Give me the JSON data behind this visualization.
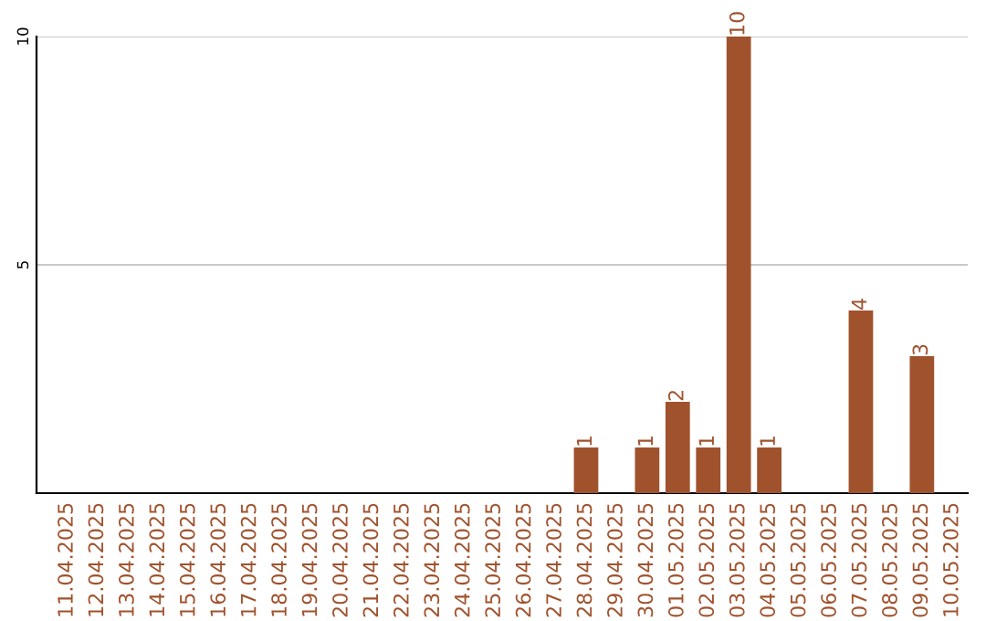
{
  "chart_data": {
    "type": "bar",
    "categories": [
      "11.04.2025",
      "12.04.2025",
      "13.04.2025",
      "14.04.2025",
      "15.04.2025",
      "16.04.2025",
      "17.04.2025",
      "18.04.2025",
      "19.04.2025",
      "20.04.2025",
      "21.04.2025",
      "22.04.2025",
      "23.04.2025",
      "24.04.2025",
      "25.04.2025",
      "26.04.2025",
      "27.04.2025",
      "28.04.2025",
      "29.04.2025",
      "30.04.2025",
      "01.05.2025",
      "02.05.2025",
      "03.05.2025",
      "04.05.2025",
      "05.05.2025",
      "06.05.2025",
      "07.05.2025",
      "08.05.2025",
      "09.05.2025",
      "10.05.2025"
    ],
    "values": [
      0,
      0,
      0,
      0,
      0,
      0,
      0,
      0,
      0,
      0,
      0,
      0,
      0,
      0,
      0,
      0,
      0,
      1,
      0,
      1,
      2,
      1,
      10,
      1,
      0,
      0,
      4,
      0,
      3,
      0
    ],
    "value_labels": [
      null,
      null,
      null,
      null,
      null,
      null,
      null,
      null,
      null,
      null,
      null,
      null,
      null,
      null,
      null,
      null,
      null,
      "1",
      null,
      "1",
      "2",
      "1",
      "10",
      "1",
      null,
      null,
      "4",
      null,
      "3",
      null
    ],
    "color": "#a0522d",
    "ylim": [
      0,
      10
    ],
    "yticks": [
      5,
      10
    ],
    "grid": "y"
  }
}
